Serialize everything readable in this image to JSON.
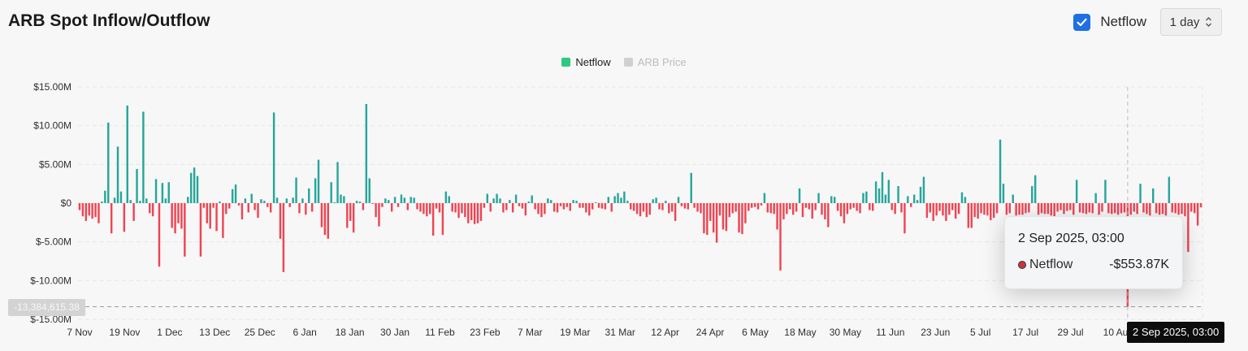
{
  "title": "ARB Spot Inflow/Outflow",
  "controls": {
    "netflow_label": "Netflow",
    "netflow_checked": true,
    "interval_value": "1 day"
  },
  "legend": [
    {
      "label": "Netflow",
      "color": "#2dc97e",
      "active": true
    },
    {
      "label": "ARB Price",
      "color": "#d0d0d0",
      "active": false
    }
  ],
  "colors": {
    "positive": "#26a69a",
    "negative": "#ef4453",
    "checkbox": "#1f6fe5"
  },
  "tooltip": {
    "title": "2 Sep 2025, 03:00",
    "series_label": "Netflow",
    "value": "-$553.87K"
  },
  "cursor": {
    "x_label": "2 Sep 2025, 03:00",
    "y_label": "-13,384,615.38",
    "y_value": -13.38
  },
  "chart_data": {
    "type": "bar",
    "series_name": "Netflow",
    "unit": "$M",
    "ylim": [
      -15,
      15
    ],
    "yticks": [
      15,
      10,
      5,
      0,
      -5,
      -10,
      -15
    ],
    "ytick_labels": [
      "$15.00M",
      "$10.00M",
      "$5.00M",
      "$0",
      "$-5.00M",
      "$-10.00M",
      "$-15.00M"
    ],
    "xtick_labels": [
      "7 Nov",
      "19 Nov",
      "1 Dec",
      "13 Dec",
      "25 Dec",
      "6 Jan",
      "18 Jan",
      "30 Jan",
      "11 Feb",
      "23 Feb",
      "7 Mar",
      "19 Mar",
      "31 Mar",
      "12 Apr",
      "24 Apr",
      "6 May",
      "18 May",
      "30 May",
      "11 Jun",
      "23 Jun",
      "5 Jul",
      "17 Jul",
      "29 Jul",
      "10 Au"
    ],
    "grid": true,
    "legend_position": "top-center",
    "values": [
      -0.9,
      -1.7,
      -2.3,
      -1.6,
      -2.0,
      -1.8,
      -2.6,
      0.2,
      1.6,
      10.4,
      -3.9,
      0.7,
      7.3,
      1.5,
      -3.7,
      12.6,
      0.4,
      -2.3,
      4.4,
      0.3,
      11.8,
      0.6,
      -1.3,
      -1.7,
      3.1,
      -8.2,
      2.6,
      0.6,
      2.7,
      -3.2,
      -3.9,
      -2.6,
      -3.3,
      -6.9,
      0.8,
      3.9,
      4.6,
      3.5,
      -6.9,
      -0.6,
      -2.6,
      -3.3,
      -0.6,
      -3.6,
      0.2,
      -4.5,
      -1.4,
      -0.7,
      1.8,
      2.4,
      -0.3,
      -2.1,
      0.6,
      -1.2,
      1.2,
      -0.9,
      -1.9,
      0.5,
      0.3,
      -0.5,
      -1.2,
      11.7,
      0.7,
      -4.6,
      -8.9,
      0.6,
      -0.5,
      0.7,
      3.3,
      -1.3,
      0.6,
      -1.5,
      1.9,
      -1.1,
      3.2,
      5.6,
      -3.1,
      -4.1,
      -4.6,
      2.7,
      0.1,
      5.3,
      1.1,
      0.9,
      -3.2,
      -2.3,
      -3.8,
      0.3,
      0.2,
      -0.9,
      12.8,
      3.2,
      -0.1,
      -1.8,
      -3.0,
      -0.5,
      0.6,
      0.4,
      -1.1,
      0.8,
      -0.5,
      1.1,
      0.7,
      -0.9,
      0.8,
      0.7,
      -0.8,
      -1.1,
      -1.4,
      -1.7,
      -1.4,
      -4.2,
      -0.7,
      -1.2,
      -4.1,
      1.5,
      0.9,
      -1.1,
      -1.2,
      -1.9,
      -1.3,
      -1.8,
      -2.6,
      -2.2,
      -2.7,
      -2.6,
      -2.3,
      -0.6,
      1.2,
      -1.1,
      0.6,
      1.2,
      0.6,
      -1.2,
      -0.9,
      0.4,
      -1.2,
      1.1,
      -0.4,
      -0.7,
      -1.6,
      0.2,
      1.0,
      -0.8,
      -1.4,
      -1.8,
      -1.4,
      0.6,
      0.4,
      -1.1,
      -1.2,
      -0.4,
      -0.8,
      -0.5,
      -1.0,
      0.4,
      0.3,
      -0.6,
      -0.6,
      -1.2,
      -1.6,
      -0.8,
      0.1,
      -0.6,
      -0.7,
      -0.8,
      0.8,
      -1.1,
      0.9,
      1.3,
      0.7,
      1.5,
      0.3,
      -0.8,
      -1.0,
      -1.4,
      -1.7,
      -1.1,
      -1.8,
      -1.5,
      0.5,
      0.7,
      -0.8,
      -0.9,
      0.3,
      -1.3,
      -1.1,
      -2.3,
      0.8,
      -0.4,
      -0.7,
      -0.8,
      3.9,
      -0.6,
      -1.1,
      -1.3,
      -3.9,
      -4.1,
      -2.3,
      -3.8,
      -5.1,
      -1.6,
      -3.4,
      -3.6,
      -1.8,
      -1.3,
      -1.1,
      -3.8,
      -4.0,
      -2.6,
      -1.0,
      -0.6,
      -0.5,
      -0.8,
      -0.3,
      1.3,
      -1.2,
      -1.3,
      -1.4,
      -3.4,
      -8.7,
      -2.1,
      -1.4,
      -0.8,
      -1.5,
      -1.1,
      1.9,
      -1.8,
      -0.6,
      -0.8,
      -2.0,
      -0.9,
      1.3,
      -1.5,
      -2.1,
      -3.1,
      0.9,
      0.8,
      -1.0,
      -1.7,
      -2.6,
      -1.4,
      -0.8,
      -0.6,
      -1.0,
      -1.3,
      1.3,
      1.5,
      -0.9,
      -1.0,
      2.8,
      1.9,
      4.0,
      1.1,
      3.0,
      -0.9,
      -1.4,
      2.2,
      -1.2,
      -3.9,
      0.9,
      -0.5,
      1.1,
      0.4,
      2.1,
      3.4,
      -1.9,
      -1.2,
      -2.3,
      -1.6,
      -1.0,
      -1.6,
      -2.3,
      -1.5,
      -0.9,
      -2.0,
      -1.4,
      1.4,
      0.8,
      -3.2,
      -3.2,
      -1.8,
      -2.0,
      -1.3,
      -1.5,
      -1.6,
      -2.2,
      -1.9,
      -1.3,
      8.2,
      2.5,
      -1.5,
      -1.3,
      1.1,
      -1.6,
      -1.5,
      -1.5,
      -1.3,
      -1.2,
      2.2,
      3.6,
      -1.5,
      -1.3,
      -1.4,
      -1.4,
      -1.6,
      -1.7,
      -1.1,
      -0.9,
      -1.4,
      -1.0,
      -0.9,
      -1.5,
      3.0,
      -1.2,
      -1.3,
      -1.4,
      -1.2,
      -1.3,
      1.3,
      -1.5,
      -1.1,
      3.0,
      -1.3,
      -1.4,
      -1.3,
      -1.5,
      -1.3,
      -1.2,
      -13.38,
      -1.5,
      -1.1,
      -1.4,
      2.5,
      -1.2,
      -1.4,
      -1.6,
      1.9,
      -1.3,
      -1.5,
      -1.4,
      -1.6,
      3.4,
      -1.2,
      -1.3,
      -1.5,
      -1.4,
      -1.7,
      -6.3,
      -1.1,
      -1.3,
      -2.9,
      -0.55
    ]
  }
}
